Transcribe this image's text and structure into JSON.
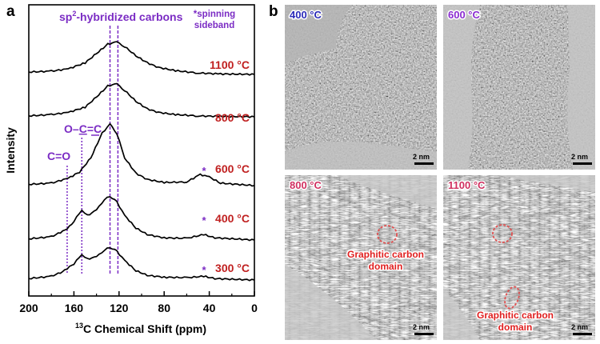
{
  "panel_a": {
    "letter": "a",
    "title_prefix": "sp",
    "title_sup": "2",
    "title_suffix": "-hybridized carbons",
    "note_line1": "*spinning",
    "note_line2": "sideband",
    "peak_labels": {
      "co": "C=O",
      "ocec_o": "O–",
      "ocec_c": "C",
      "ocec_rest": "=C"
    },
    "ylabel": "Intensity",
    "xlabel_sup": "13",
    "xlabel_rest": "C Chemical Shift (ppm)",
    "ticks": [
      "200",
      "160",
      "120",
      "80",
      "40",
      "0"
    ],
    "star": "*"
  },
  "panel_b": {
    "letter": "b",
    "images": [
      {
        "temp": "400 °C",
        "scale": "2 nm",
        "domain_line1": "",
        "domain_line2": ""
      },
      {
        "temp": "600 °C",
        "scale": "2 nm",
        "domain_line1": "",
        "domain_line2": ""
      },
      {
        "temp": "800 °C",
        "scale": "2 nm",
        "domain_line1": "Graphitic carbon",
        "domain_line2": "domain"
      },
      {
        "temp": "1100 °C",
        "scale": "2 nm",
        "domain_line1": "Graphitic carbon",
        "domain_line2": "domain"
      }
    ]
  },
  "chart_data": {
    "type": "line",
    "title": "sp2-hybridized carbons",
    "xlabel": "13C Chemical Shift (ppm)",
    "ylabel": "Intensity",
    "xlim": [
      200,
      0
    ],
    "x_reversed": true,
    "y_ticks_shown": false,
    "reference_lines_ppm": [
      {
        "ppm": 166,
        "label": "C=O",
        "style": "dotted"
      },
      {
        "ppm": 153,
        "label": "O-C=C",
        "style": "dotted"
      },
      {
        "ppm": 128,
        "label": "sp2-hybridized carbons",
        "style": "dashed"
      },
      {
        "ppm": 121,
        "label": "sp2-hybridized carbons",
        "style": "dashed"
      }
    ],
    "series": [
      {
        "name": "1100 °C",
        "label": "1100 °C",
        "sideband": false,
        "points": [
          [
            200,
            0.05
          ],
          [
            180,
            0.07
          ],
          [
            165,
            0.12
          ],
          [
            150,
            0.25
          ],
          [
            140,
            0.45
          ],
          [
            130,
            0.65
          ],
          [
            122,
            0.7
          ],
          [
            115,
            0.6
          ],
          [
            105,
            0.4
          ],
          [
            95,
            0.25
          ],
          [
            85,
            0.15
          ],
          [
            70,
            0.08
          ],
          [
            50,
            0.03
          ],
          [
            30,
            0.01
          ],
          [
            0,
            0
          ]
        ]
      },
      {
        "name": "800 °C",
        "label": "800 °C",
        "sideband": false,
        "points": [
          [
            200,
            0.02
          ],
          [
            180,
            0.05
          ],
          [
            165,
            0.1
          ],
          [
            150,
            0.22
          ],
          [
            140,
            0.45
          ],
          [
            130,
            0.7
          ],
          [
            122,
            0.75
          ],
          [
            115,
            0.6
          ],
          [
            105,
            0.35
          ],
          [
            95,
            0.18
          ],
          [
            85,
            0.1
          ],
          [
            70,
            0.05
          ],
          [
            50,
            0.02
          ],
          [
            30,
            0.01
          ],
          [
            0,
            0
          ]
        ]
      },
      {
        "name": "600 °C",
        "label": "600 °C",
        "sideband": true,
        "points": [
          [
            200,
            0.02
          ],
          [
            180,
            0.04
          ],
          [
            165,
            0.12
          ],
          [
            155,
            0.22
          ],
          [
            145,
            0.45
          ],
          [
            135,
            0.85
          ],
          [
            128,
            1.0
          ],
          [
            122,
            0.85
          ],
          [
            115,
            0.45
          ],
          [
            105,
            0.2
          ],
          [
            95,
            0.1
          ],
          [
            80,
            0.05
          ],
          [
            60,
            0.06
          ],
          [
            48,
            0.18
          ],
          [
            40,
            0.14
          ],
          [
            30,
            0.04
          ],
          [
            0,
            0
          ]
        ]
      },
      {
        "name": "400 °C",
        "label": "400 °C",
        "sideband": true,
        "points": [
          [
            200,
            0.02
          ],
          [
            180,
            0.06
          ],
          [
            166,
            0.2
          ],
          [
            160,
            0.35
          ],
          [
            153,
            0.55
          ],
          [
            148,
            0.45
          ],
          [
            140,
            0.55
          ],
          [
            133,
            0.75
          ],
          [
            128,
            0.8
          ],
          [
            122,
            0.7
          ],
          [
            115,
            0.45
          ],
          [
            105,
            0.22
          ],
          [
            95,
            0.1
          ],
          [
            80,
            0.04
          ],
          [
            60,
            0.03
          ],
          [
            45,
            0.1
          ],
          [
            35,
            0.04
          ],
          [
            0,
            0
          ]
        ]
      },
      {
        "name": "300 °C",
        "label": "300 °C",
        "sideband": true,
        "points": [
          [
            200,
            0.03
          ],
          [
            180,
            0.08
          ],
          [
            170,
            0.18
          ],
          [
            160,
            0.35
          ],
          [
            153,
            0.55
          ],
          [
            148,
            0.45
          ],
          [
            140,
            0.5
          ],
          [
            133,
            0.65
          ],
          [
            128,
            0.7
          ],
          [
            122,
            0.62
          ],
          [
            115,
            0.42
          ],
          [
            105,
            0.2
          ],
          [
            95,
            0.1
          ],
          [
            80,
            0.06
          ],
          [
            60,
            0.05
          ],
          [
            45,
            0.08
          ],
          [
            35,
            0.03
          ],
          [
            0,
            0
          ]
        ]
      }
    ]
  },
  "colors": {
    "purple": "#7b2cc4",
    "red": "#c02020",
    "blue": "#1f3ea0",
    "tem_label_400": "#2a2ab8",
    "tem_label_600": "#8a2bd0",
    "tem_label_800": "#d03060",
    "tem_label_1100": "#d03060",
    "domain_text": "#e02020",
    "domain_ellipse": "#e05050"
  }
}
